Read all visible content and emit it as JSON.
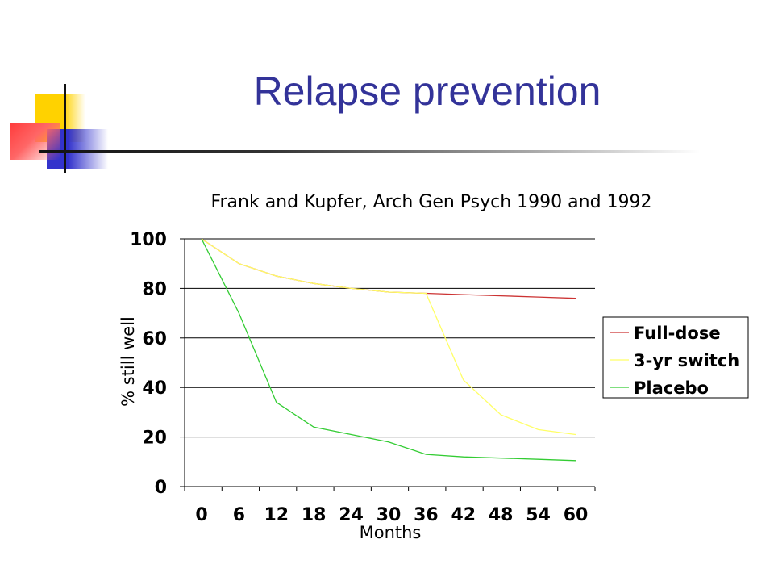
{
  "slide": {
    "title": "Relapse prevention"
  },
  "chart_data": {
    "type": "line",
    "title": "Frank and Kupfer, Arch Gen Psych 1990 and 1992",
    "xlabel": "Months",
    "ylabel": "% still well",
    "xlim": [
      0,
      60
    ],
    "ylim": [
      0,
      100
    ],
    "x_ticks": [
      0,
      6,
      12,
      18,
      24,
      30,
      36,
      42,
      48,
      54,
      60
    ],
    "y_ticks": [
      0,
      20,
      40,
      60,
      80,
      100
    ],
    "grid": "horizontal",
    "legend_position": "right",
    "series": [
      {
        "name": "Full-dose",
        "color": "#cc3333",
        "points": [
          [
            0,
            100
          ],
          [
            6,
            90
          ],
          [
            12,
            85
          ],
          [
            18,
            82
          ],
          [
            24,
            80
          ],
          [
            30,
            78.5
          ],
          [
            36,
            78
          ],
          [
            42,
            77.5
          ],
          [
            48,
            77
          ],
          [
            54,
            76.5
          ],
          [
            60,
            76
          ]
        ]
      },
      {
        "name": "3-yr switch",
        "color": "#ffff66",
        "points": [
          [
            0,
            100
          ],
          [
            6,
            90
          ],
          [
            12,
            85
          ],
          [
            18,
            82
          ],
          [
            24,
            80
          ],
          [
            30,
            78.5
          ],
          [
            36,
            78
          ],
          [
            42,
            43
          ],
          [
            48,
            29
          ],
          [
            54,
            23
          ],
          [
            60,
            21
          ]
        ]
      },
      {
        "name": "Placebo",
        "color": "#33cc33",
        "points": [
          [
            0,
            100
          ],
          [
            6,
            70
          ],
          [
            12,
            34
          ],
          [
            18,
            24
          ],
          [
            24,
            21
          ],
          [
            30,
            18
          ],
          [
            36,
            13
          ],
          [
            42,
            12
          ],
          [
            48,
            11.5
          ],
          [
            54,
            11
          ],
          [
            60,
            10.5
          ]
        ]
      }
    ]
  }
}
